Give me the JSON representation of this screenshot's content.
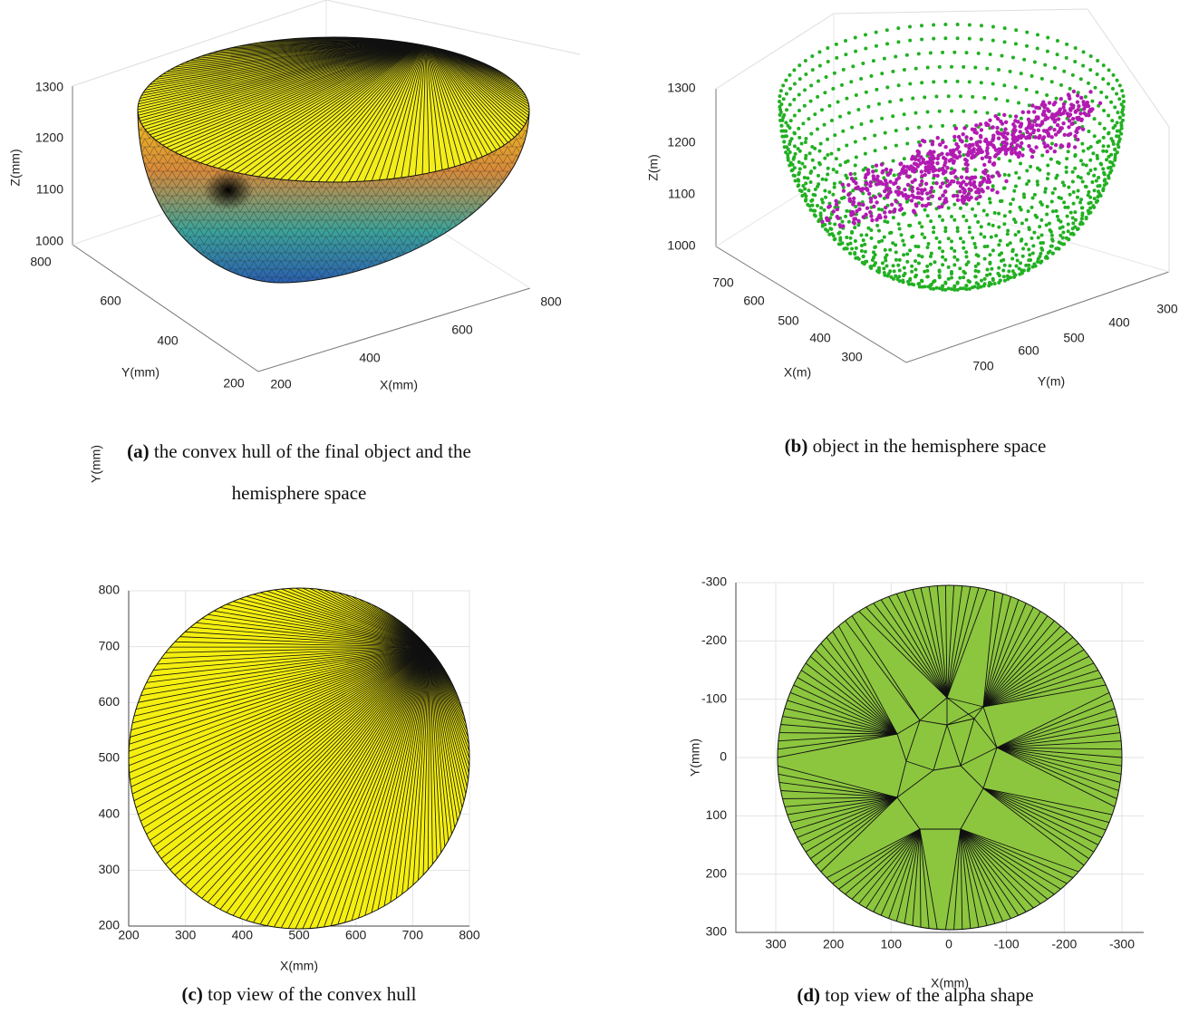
{
  "panels": [
    {
      "caption": {
        "label": "(a)",
        "lines": [
          "the convex hull of the final object and the",
          "hemisphere space"
        ]
      },
      "axes": {
        "z_label": "Z(mm)",
        "y_label": "Y(mm)",
        "x_label": "X(mm)",
        "z_ticks": [
          1000,
          1100,
          1200,
          1300
        ],
        "y_ticks": [
          200,
          400,
          600,
          800
        ],
        "x_ticks": [
          200,
          400,
          600,
          800
        ]
      }
    },
    {
      "caption": {
        "label": "(b)",
        "lines": [
          "object in the hemisphere space"
        ]
      },
      "axes": {
        "z_label": "Z(m)",
        "x_label": "X(m)",
        "y_label": "Y(m)",
        "z_ticks": [
          1000,
          1100,
          1200,
          1300
        ],
        "x_ticks": [
          300,
          400,
          500,
          600,
          700
        ],
        "y_ticks": [
          300,
          400,
          500,
          600,
          700
        ]
      }
    },
    {
      "caption": {
        "label": "(c)",
        "lines": [
          "top view of the convex hull"
        ]
      },
      "axes": {
        "x_label": "X(mm)",
        "y_label": "Y(mm)",
        "x_ticks": [
          200,
          300,
          400,
          500,
          600,
          700,
          800
        ],
        "y_ticks": [
          200,
          300,
          400,
          500,
          600,
          700,
          800
        ]
      }
    },
    {
      "caption": {
        "label": "(d)",
        "lines": [
          "top view of the alpha shape"
        ]
      },
      "axes": {
        "x_label": "X(mm)",
        "y_label": "Y(mm)",
        "x_ticks": [
          300,
          200,
          100,
          0,
          -100,
          -200,
          -300
        ],
        "y_ticks": [
          -300,
          -200,
          -100,
          0,
          100,
          200,
          300
        ]
      }
    }
  ]
}
